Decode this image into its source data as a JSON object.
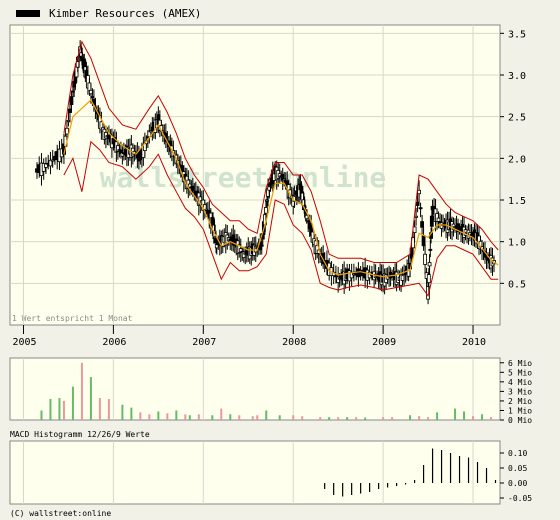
{
  "legend": {
    "label": "Kimber Resources (AMEX)",
    "swatch_color": "#000000"
  },
  "watermark": "wallstreet:online",
  "note": "1 Wert entspricht 1 Monat",
  "copyright": "(C) wallstreet:online",
  "colors": {
    "background": "#f1f1e7",
    "plot_background": "#ffffee",
    "grid": "#d8d8c8",
    "frame": "#888888",
    "band": "#c80000",
    "ma": "#f0a000",
    "candle": "#000000",
    "volume_up": "#66bb66",
    "volume_down": "#e89a9a",
    "watermark": "#cfe3cf"
  },
  "chart_data": [
    {
      "type": "candlestick",
      "title": "Kimber Resources (AMEX)",
      "x_tick_labels": [
        "2005",
        "2006",
        "2007",
        "2008",
        "2009",
        "2010"
      ],
      "x_ticks": [
        2005.0,
        2006.0,
        2007.0,
        2008.0,
        2009.0,
        2010.0
      ],
      "xlim": [
        2004.85,
        2010.3
      ],
      "y_tick_labels": [
        "0.5",
        "1.0",
        "1.5",
        "2.0",
        "2.5",
        "3.0",
        "3.5"
      ],
      "y_ticks": [
        0.5,
        1.0,
        1.5,
        2.0,
        2.5,
        3.0,
        3.5
      ],
      "ylim": [
        0.0,
        3.6
      ],
      "grid": true,
      "overlays": [
        "upper band (red)",
        "lower band (red)",
        "moving average (orange)"
      ],
      "price": [
        [
          2005.15,
          1.85
        ],
        [
          2005.3,
          1.95
        ],
        [
          2005.45,
          2.1
        ],
        [
          2005.55,
          2.8
        ],
        [
          2005.63,
          3.3
        ],
        [
          2005.7,
          3.0
        ],
        [
          2005.8,
          2.6
        ],
        [
          2005.9,
          2.3
        ],
        [
          2006.0,
          2.2
        ],
        [
          2006.1,
          2.05
        ],
        [
          2006.2,
          2.1
        ],
        [
          2006.3,
          2.0
        ],
        [
          2006.4,
          2.3
        ],
        [
          2006.5,
          2.45
        ],
        [
          2006.6,
          2.2
        ],
        [
          2006.7,
          2.0
        ],
        [
          2006.8,
          1.75
        ],
        [
          2006.9,
          1.6
        ],
        [
          2007.0,
          1.45
        ],
        [
          2007.1,
          1.25
        ],
        [
          2007.15,
          0.95
        ],
        [
          2007.25,
          1.05
        ],
        [
          2007.35,
          1.0
        ],
        [
          2007.45,
          0.85
        ],
        [
          2007.55,
          0.9
        ],
        [
          2007.65,
          0.95
        ],
        [
          2007.72,
          1.6
        ],
        [
          2007.8,
          1.85
        ],
        [
          2007.9,
          1.75
        ],
        [
          2008.0,
          1.5
        ],
        [
          2008.08,
          1.65
        ],
        [
          2008.15,
          1.3
        ],
        [
          2008.25,
          0.95
        ],
        [
          2008.35,
          0.75
        ],
        [
          2008.5,
          0.55
        ],
        [
          2008.6,
          0.6
        ],
        [
          2008.75,
          0.62
        ],
        [
          2008.9,
          0.6
        ],
        [
          2009.0,
          0.55
        ],
        [
          2009.1,
          0.6
        ],
        [
          2009.2,
          0.55
        ],
        [
          2009.3,
          0.7
        ],
        [
          2009.4,
          1.6
        ],
        [
          2009.5,
          0.4
        ],
        [
          2009.55,
          1.4
        ],
        [
          2009.65,
          1.2
        ],
        [
          2009.75,
          1.2
        ],
        [
          2009.85,
          1.15
        ],
        [
          2009.95,
          1.1
        ],
        [
          2010.05,
          1.05
        ],
        [
          2010.15,
          0.8
        ],
        [
          2010.25,
          0.75
        ]
      ],
      "upper_band": [
        [
          2005.45,
          2.3
        ],
        [
          2005.55,
          3.0
        ],
        [
          2005.65,
          3.4
        ],
        [
          2005.75,
          3.2
        ],
        [
          2005.85,
          2.9
        ],
        [
          2005.95,
          2.6
        ],
        [
          2006.1,
          2.4
        ],
        [
          2006.25,
          2.35
        ],
        [
          2006.4,
          2.6
        ],
        [
          2006.5,
          2.75
        ],
        [
          2006.6,
          2.55
        ],
        [
          2006.7,
          2.3
        ],
        [
          2006.8,
          2.0
        ],
        [
          2006.9,
          1.8
        ],
        [
          2007.0,
          1.65
        ],
        [
          2007.1,
          1.45
        ],
        [
          2007.2,
          1.35
        ],
        [
          2007.3,
          1.25
        ],
        [
          2007.4,
          1.25
        ],
        [
          2007.5,
          1.15
        ],
        [
          2007.6,
          1.1
        ],
        [
          2007.7,
          1.65
        ],
        [
          2007.8,
          1.95
        ],
        [
          2007.9,
          1.95
        ],
        [
          2008.0,
          1.8
        ],
        [
          2008.1,
          1.8
        ],
        [
          2008.2,
          1.6
        ],
        [
          2008.3,
          1.25
        ],
        [
          2008.4,
          0.85
        ],
        [
          2008.5,
          0.8
        ],
        [
          2008.6,
          0.8
        ],
        [
          2008.75,
          0.8
        ],
        [
          2008.9,
          0.75
        ],
        [
          2009.0,
          0.75
        ],
        [
          2009.15,
          0.75
        ],
        [
          2009.3,
          0.85
        ],
        [
          2009.4,
          1.8
        ],
        [
          2009.5,
          1.75
        ],
        [
          2009.6,
          1.6
        ],
        [
          2009.7,
          1.45
        ],
        [
          2009.8,
          1.35
        ],
        [
          2009.9,
          1.3
        ],
        [
          2010.0,
          1.25
        ],
        [
          2010.1,
          1.15
        ],
        [
          2010.2,
          1.0
        ],
        [
          2010.28,
          0.9
        ]
      ],
      "lower_band": [
        [
          2005.45,
          1.8
        ],
        [
          2005.55,
          2.0
        ],
        [
          2005.65,
          1.6
        ],
        [
          2005.75,
          2.2
        ],
        [
          2005.85,
          2.1
        ],
        [
          2005.95,
          1.95
        ],
        [
          2006.1,
          1.9
        ],
        [
          2006.25,
          1.75
        ],
        [
          2006.4,
          1.9
        ],
        [
          2006.5,
          2.05
        ],
        [
          2006.6,
          1.8
        ],
        [
          2006.7,
          1.6
        ],
        [
          2006.8,
          1.4
        ],
        [
          2006.9,
          1.3
        ],
        [
          2007.0,
          1.15
        ],
        [
          2007.1,
          0.85
        ],
        [
          2007.2,
          0.55
        ],
        [
          2007.3,
          0.75
        ],
        [
          2007.4,
          0.65
        ],
        [
          2007.5,
          0.65
        ],
        [
          2007.6,
          0.7
        ],
        [
          2007.7,
          0.85
        ],
        [
          2007.8,
          1.5
        ],
        [
          2007.9,
          1.45
        ],
        [
          2008.0,
          1.2
        ],
        [
          2008.1,
          1.1
        ],
        [
          2008.2,
          0.9
        ],
        [
          2008.3,
          0.5
        ],
        [
          2008.4,
          0.45
        ],
        [
          2008.5,
          0.42
        ],
        [
          2008.6,
          0.45
        ],
        [
          2008.75,
          0.48
        ],
        [
          2008.9,
          0.45
        ],
        [
          2009.0,
          0.42
        ],
        [
          2009.15,
          0.45
        ],
        [
          2009.3,
          0.48
        ],
        [
          2009.4,
          0.5
        ],
        [
          2009.5,
          0.35
        ],
        [
          2009.6,
          0.8
        ],
        [
          2009.7,
          0.95
        ],
        [
          2009.8,
          0.95
        ],
        [
          2009.9,
          0.9
        ],
        [
          2010.0,
          0.85
        ],
        [
          2010.1,
          0.7
        ],
        [
          2010.2,
          0.55
        ],
        [
          2010.28,
          0.55
        ]
      ],
      "moving_average": [
        [
          2005.45,
          2.05
        ],
        [
          2005.55,
          2.5
        ],
        [
          2005.65,
          2.6
        ],
        [
          2005.75,
          2.7
        ],
        [
          2005.85,
          2.5
        ],
        [
          2005.95,
          2.3
        ],
        [
          2006.1,
          2.15
        ],
        [
          2006.25,
          2.05
        ],
        [
          2006.4,
          2.25
        ],
        [
          2006.5,
          2.4
        ],
        [
          2006.6,
          2.2
        ],
        [
          2006.7,
          2.0
        ],
        [
          2006.8,
          1.7
        ],
        [
          2006.9,
          1.55
        ],
        [
          2007.0,
          1.4
        ],
        [
          2007.1,
          1.15
        ],
        [
          2007.2,
          0.95
        ],
        [
          2007.3,
          1.0
        ],
        [
          2007.4,
          0.95
        ],
        [
          2007.5,
          0.9
        ],
        [
          2007.6,
          0.9
        ],
        [
          2007.7,
          1.25
        ],
        [
          2007.8,
          1.7
        ],
        [
          2007.9,
          1.7
        ],
        [
          2008.0,
          1.5
        ],
        [
          2008.1,
          1.45
        ],
        [
          2008.2,
          1.25
        ],
        [
          2008.3,
          0.85
        ],
        [
          2008.4,
          0.65
        ],
        [
          2008.5,
          0.6
        ],
        [
          2008.6,
          0.62
        ],
        [
          2008.75,
          0.64
        ],
        [
          2008.9,
          0.6
        ],
        [
          2009.0,
          0.58
        ],
        [
          2009.15,
          0.6
        ],
        [
          2009.3,
          0.66
        ],
        [
          2009.4,
          1.1
        ],
        [
          2009.5,
          1.05
        ],
        [
          2009.6,
          1.2
        ],
        [
          2009.7,
          1.2
        ],
        [
          2009.8,
          1.15
        ],
        [
          2009.9,
          1.1
        ],
        [
          2010.0,
          1.05
        ],
        [
          2010.1,
          0.92
        ],
        [
          2010.2,
          0.78
        ],
        [
          2010.28,
          0.72
        ]
      ]
    },
    {
      "type": "bar",
      "title": "",
      "y_tick_labels": [
        "0 Mio",
        "1 Mio",
        "2 Mio",
        "3 Mio",
        "4 Mio",
        "5 Mio",
        "6 Mio"
      ],
      "y_ticks": [
        0,
        1,
        2,
        3,
        4,
        5,
        6
      ],
      "ylim": [
        0,
        6.5
      ],
      "series": [
        {
          "color": "up",
          "values": [
            [
              2005.2,
              1.0
            ],
            [
              2005.3,
              2.2
            ],
            [
              2005.4,
              2.3
            ],
            [
              2005.55,
              3.5
            ],
            [
              2005.75,
              4.5
            ],
            [
              2006.1,
              1.6
            ],
            [
              2006.2,
              1.3
            ],
            [
              2006.5,
              0.9
            ],
            [
              2006.7,
              1.0
            ],
            [
              2006.85,
              0.5
            ],
            [
              2007.1,
              0.5
            ],
            [
              2007.3,
              0.6
            ],
            [
              2007.7,
              1.0
            ],
            [
              2007.85,
              0.5
            ],
            [
              2008.4,
              0.3
            ],
            [
              2008.6,
              0.3
            ],
            [
              2008.8,
              0.25
            ],
            [
              2009.3,
              0.5
            ],
            [
              2009.6,
              0.8
            ],
            [
              2009.8,
              1.2
            ],
            [
              2009.9,
              0.9
            ],
            [
              2010.1,
              0.6
            ]
          ]
        },
        {
          "color": "down",
          "values": [
            [
              2005.45,
              2.0
            ],
            [
              2005.65,
              6.0
            ],
            [
              2005.85,
              2.3
            ],
            [
              2005.95,
              2.2
            ],
            [
              2006.3,
              0.8
            ],
            [
              2006.4,
              0.6
            ],
            [
              2006.6,
              0.7
            ],
            [
              2006.8,
              0.6
            ],
            [
              2006.95,
              0.6
            ],
            [
              2007.2,
              1.2
            ],
            [
              2007.4,
              0.5
            ],
            [
              2007.55,
              0.4
            ],
            [
              2007.6,
              0.5
            ],
            [
              2008.0,
              0.5
            ],
            [
              2008.1,
              0.4
            ],
            [
              2008.3,
              0.3
            ],
            [
              2008.5,
              0.3
            ],
            [
              2008.7,
              0.3
            ],
            [
              2009.0,
              0.3
            ],
            [
              2009.1,
              0.3
            ],
            [
              2009.4,
              0.4
            ],
            [
              2009.5,
              0.3
            ],
            [
              2010.0,
              0.4
            ],
            [
              2010.2,
              0.3
            ]
          ]
        }
      ]
    },
    {
      "type": "bar",
      "title": "MACD Histogramm 12/26/9 Werte",
      "y_tick_labels": [
        "-0.05",
        "0.00",
        "0.05",
        "0.10"
      ],
      "y_ticks": [
        -0.05,
        0.0,
        0.05,
        0.1
      ],
      "ylim": [
        -0.07,
        0.14
      ],
      "values": [
        [
          2008.35,
          -0.02
        ],
        [
          2008.45,
          -0.04
        ],
        [
          2008.55,
          -0.045
        ],
        [
          2008.65,
          -0.04
        ],
        [
          2008.75,
          -0.035
        ],
        [
          2008.85,
          -0.03
        ],
        [
          2008.95,
          -0.02
        ],
        [
          2009.05,
          -0.015
        ],
        [
          2009.15,
          -0.01
        ],
        [
          2009.25,
          -0.005
        ],
        [
          2009.35,
          0.01
        ],
        [
          2009.45,
          0.06
        ],
        [
          2009.55,
          0.115
        ],
        [
          2009.65,
          0.11
        ],
        [
          2009.75,
          0.1
        ],
        [
          2009.85,
          0.09
        ],
        [
          2009.95,
          0.085
        ],
        [
          2010.05,
          0.07
        ],
        [
          2010.15,
          0.05
        ],
        [
          2010.25,
          0.01
        ]
      ]
    }
  ]
}
